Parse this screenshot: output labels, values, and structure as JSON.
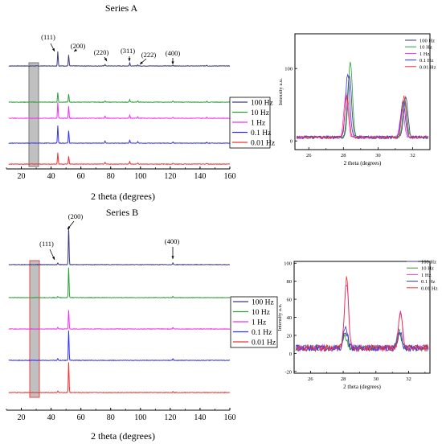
{
  "chart_data": [
    {
      "type": "line",
      "title": "Series A",
      "xlabel": "2 theta (degrees)",
      "ylabel": "",
      "xlim": [
        10,
        160
      ],
      "x_ticks": [
        20,
        40,
        60,
        80,
        100,
        120,
        140,
        160
      ],
      "legend": "center-right",
      "series": [
        {
          "name": "100 Hz",
          "color": "#3a3a7a"
        },
        {
          "name": "10 Hz",
          "color": "#2e9e3a"
        },
        {
          "name": "1 Hz",
          "color": "#ee33ee"
        },
        {
          "name": "0.1 Hz",
          "color": "#3333ee"
        },
        {
          "name": "0.01 Hz",
          "color": "#ee3333"
        }
      ],
      "peaks": [
        {
          "x": 44.5,
          "h": [
            18,
            12,
            20,
            22,
            14
          ]
        },
        {
          "x": 51.8,
          "h": [
            14,
            10,
            15,
            16,
            10
          ]
        },
        {
          "x": 76.2,
          "h": [
            2,
            1.5,
            3,
            3,
            2
          ]
        },
        {
          "x": 92.8,
          "h": [
            4,
            3,
            4,
            4,
            3
          ]
        },
        {
          "x": 98.2,
          "h": [
            1.5,
            1.5,
            2,
            2,
            1.5
          ]
        },
        {
          "x": 121.8,
          "h": [
            1,
            1,
            1.5,
            1.5,
            1
          ]
        },
        {
          "x": 144.5,
          "h": [
            1,
            1,
            1,
            1,
            1
          ]
        }
      ],
      "annotations": [
        {
          "text": "(111)",
          "x": 44.5
        },
        {
          "text": "(200)",
          "x": 51.8
        },
        {
          "text": "(220)",
          "x": 76.2
        },
        {
          "text": "(311)",
          "x": 92.8
        },
        {
          "text": "(222)",
          "x": 98.2
        },
        {
          "text": "(400)",
          "x": 121.8
        }
      ],
      "inset": {
        "type": "line",
        "xlabel": "2 theta (degrees)",
        "ylabel": "Intensity a.u.",
        "xlim": [
          25.2,
          33
        ],
        "ylim": [
          -12,
          148
        ],
        "x_ticks": [
          26,
          28,
          30,
          32
        ],
        "y_ticks": [
          0,
          100
        ],
        "legend": "top-right",
        "series": [
          {
            "name": "100 Hz",
            "color": "#3a3a7a"
          },
          {
            "name": "10 Hz",
            "color": "#2e9e3a"
          },
          {
            "name": "1 Hz",
            "color": "#ee33ee"
          },
          {
            "name": "0.1 Hz",
            "color": "#3333ee"
          },
          {
            "name": "0.01 Hz",
            "color": "#ee3333"
          }
        ],
        "peaks": [
          {
            "x": [
              28.35,
              28.4,
              28.15,
              28.25,
              28.2
            ],
            "h": [
              85,
              105,
              60,
              88,
              58
            ]
          },
          {
            "x": [
              31.6,
              31.55,
              31.4,
              31.45,
              31.5
            ],
            "h": [
              55,
              52,
              40,
              50,
              56
            ]
          }
        ],
        "baseline": 5
      }
    },
    {
      "type": "line",
      "title": "Series B",
      "xlabel": "2 theta (degrees)",
      "ylabel": "",
      "xlim": [
        10,
        160
      ],
      "x_ticks": [
        20,
        40,
        60,
        80,
        100,
        120,
        140,
        160
      ],
      "legend": "center-right",
      "series": [
        {
          "name": "100 Hz",
          "color": "#3a3a7a"
        },
        {
          "name": "10 Hz",
          "color": "#2e9e3a"
        },
        {
          "name": "1 Hz",
          "color": "#ee33ee"
        },
        {
          "name": "0.1 Hz",
          "color": "#3333ee"
        },
        {
          "name": "0.01 Hz",
          "color": "#ee3333"
        }
      ],
      "peaks": [
        {
          "x": 44.5,
          "h": [
            2,
            1.5,
            2,
            2,
            2
          ]
        },
        {
          "x": 51.8,
          "h": [
            48,
            38,
            24,
            38,
            38
          ]
        },
        {
          "x": 121.8,
          "h": [
            2,
            1.5,
            2,
            2,
            1.5
          ]
        }
      ],
      "annotations": [
        {
          "text": "(111)",
          "x": 44.5
        },
        {
          "text": "(200)",
          "x": 51.8
        },
        {
          "text": "(400)",
          "x": 121.8
        }
      ],
      "inset": {
        "type": "line",
        "xlabel": "2 theta (degrees)",
        "ylabel": "Intensity a.u.",
        "xlim": [
          25,
          33.3
        ],
        "ylim": [
          -22,
          102
        ],
        "x_ticks": [
          26,
          28,
          30,
          32
        ],
        "y_ticks": [
          -20,
          0,
          20,
          40,
          60,
          80,
          100
        ],
        "legend": "top-right",
        "series": [
          {
            "name": "100 Hz",
            "color": "#3a3a7a"
          },
          {
            "name": "10 Hz",
            "color": "#2e9e3a"
          },
          {
            "name": "1 Hz",
            "color": "#ee33ee"
          },
          {
            "name": "0.1 Hz",
            "color": "#3333ee"
          },
          {
            "name": "0.01 Hz",
            "color": "#ee3333"
          }
        ],
        "peaks": [
          {
            "x": [
              28.15,
              28.1,
              28.2,
              28.15,
              28.2
            ],
            "h": [
              18,
              14,
              73,
              24,
              78
            ]
          },
          {
            "x": [
              31.45,
              31.4,
              31.5,
              31.45,
              31.5
            ],
            "h": [
              16,
              18,
              42,
              20,
              38
            ]
          }
        ],
        "baseline": 6
      }
    }
  ]
}
